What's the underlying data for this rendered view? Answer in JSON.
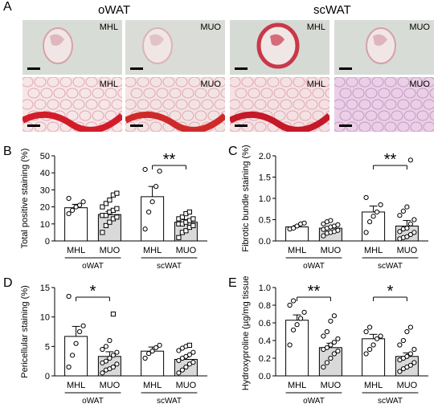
{
  "panels": {
    "A": {
      "letter": "A",
      "column_titles": [
        "oWAT",
        "scWAT"
      ],
      "tiles": [
        {
          "label": "MHL",
          "row": 0,
          "col": 0,
          "bg": "#d8dcd6",
          "tissue": "#d7a3a9"
        },
        {
          "label": "MUO",
          "row": 0,
          "col": 1,
          "bg": "#dadcd7",
          "tissue": "#dcb4b6"
        },
        {
          "label": "MHL",
          "row": 0,
          "col": 2,
          "bg": "#d6dad4",
          "tissue": "#c7394a"
        },
        {
          "label": "MUO",
          "row": 0,
          "col": 3,
          "bg": "#d8dcd6",
          "tissue": "#d5a0ad"
        },
        {
          "label": "MHL",
          "row": 1,
          "col": 0,
          "bg": "#f6e6e8",
          "tissue": "#d21c2a"
        },
        {
          "label": "MUO",
          "row": 1,
          "col": 1,
          "bg": "#f3e4e4",
          "tissue": "#cf2a2a"
        },
        {
          "label": "MHL",
          "row": 1,
          "col": 2,
          "bg": "#f4e1e3",
          "tissue": "#c51828"
        },
        {
          "label": "MUO",
          "row": 1,
          "col": 3,
          "bg": "#eacfe6",
          "tissue": "#d7a8d6"
        }
      ]
    }
  },
  "chart_data": [
    {
      "panel": "B",
      "type": "bar",
      "ylabel": "Total positive staining (%)",
      "ylim": [
        0,
        50
      ],
      "yticks": [
        0,
        10,
        20,
        30,
        40,
        50
      ],
      "categories": [
        "MHL",
        "MUO",
        "MHL",
        "MUO"
      ],
      "groups": [
        "oWAT",
        "scWAT"
      ],
      "values": [
        19.5,
        15.5,
        26,
        11
      ],
      "errors": [
        2,
        1.8,
        6,
        1.5
      ],
      "bar_fill": [
        "#ffffff",
        "#d9d9d9",
        "#ffffff",
        "#d9d9d9"
      ],
      "points": [
        [
          16,
          18,
          20,
          21,
          23,
          25
        ],
        [
          5,
          9,
          11,
          13,
          14,
          15,
          15,
          17,
          18,
          19,
          20,
          22,
          24,
          27,
          28
        ],
        [
          7,
          17,
          23,
          32,
          41,
          42
        ],
        [
          2,
          5,
          6,
          8,
          9,
          10,
          10,
          11,
          12,
          13,
          13,
          14,
          16,
          17
        ]
      ],
      "significance": [
        {
          "from": 2,
          "to": 3,
          "label": "**"
        }
      ]
    },
    {
      "panel": "C",
      "type": "bar",
      "ylabel": "Fibrotic bundle staining (%)",
      "ylim": [
        0,
        2.0
      ],
      "yticks": [
        0.0,
        0.5,
        1.0,
        1.5,
        2.0
      ],
      "categories": [
        "MHL",
        "MUO",
        "MHL",
        "MUO"
      ],
      "groups": [
        "oWAT",
        "scWAT"
      ],
      "values": [
        0.33,
        0.3,
        0.68,
        0.35
      ],
      "errors": [
        0.03,
        0.04,
        0.14,
        0.13
      ],
      "bar_fill": [
        "#ffffff",
        "#d9d9d9",
        "#ffffff",
        "#d9d9d9"
      ],
      "points": [
        [
          0.28,
          0.3,
          0.35,
          0.4,
          0.42
        ],
        [
          0.12,
          0.18,
          0.2,
          0.22,
          0.25,
          0.27,
          0.3,
          0.33,
          0.35,
          0.38,
          0.4,
          0.45,
          0.48
        ],
        [
          0.2,
          0.45,
          0.58,
          0.68,
          0.85,
          1.02
        ],
        [
          0.05,
          0.08,
          0.1,
          0.15,
          0.2,
          0.22,
          0.28,
          0.3,
          0.4,
          0.5,
          0.6,
          0.7,
          0.8,
          1.9
        ]
      ],
      "significance": [
        {
          "from": 2,
          "to": 3,
          "label": "**"
        }
      ]
    },
    {
      "panel": "D",
      "type": "bar",
      "ylabel": "Pericellular staining (%)",
      "ylim": [
        0,
        15
      ],
      "yticks": [
        0,
        5,
        10,
        15
      ],
      "categories": [
        "MHL",
        "MUO",
        "MHL",
        "MUO"
      ],
      "groups": [
        "oWAT",
        "scWAT"
      ],
      "values": [
        6.7,
        3.3,
        4.2,
        2.8
      ],
      "errors": [
        1.7,
        0.8,
        0.7,
        0.4
      ],
      "bar_fill": [
        "#ffffff",
        "#d9d9d9",
        "#ffffff",
        "#d9d9d9"
      ],
      "points": [
        [
          1.5,
          3.5,
          5.5,
          7.5,
          8.5,
          13.5
        ],
        [
          0.5,
          1,
          1.2,
          1.5,
          2,
          2.2,
          2.5,
          3,
          3.5,
          4,
          4.5,
          5,
          6,
          10.5
        ],
        [
          3,
          3.8,
          4.2,
          4.8,
          5.2
        ],
        [
          0.5,
          1,
          1.5,
          2,
          2.3,
          2.6,
          3,
          3.3,
          3.6,
          4,
          4.3,
          4.7,
          5,
          5.2
        ]
      ],
      "significance": [
        {
          "from": 0,
          "to": 1,
          "label": "*"
        }
      ]
    },
    {
      "panel": "E",
      "type": "bar",
      "ylabel": "Hydroxyproline (µg/mg tissue)",
      "ylim": [
        0,
        1.0
      ],
      "yticks": [
        0.0,
        0.2,
        0.4,
        0.6,
        0.8,
        1.0
      ],
      "categories": [
        "MHL",
        "MUO",
        "MHL",
        "MUO"
      ],
      "groups": [
        "oWAT",
        "scWAT"
      ],
      "values": [
        0.63,
        0.32,
        0.42,
        0.22
      ],
      "errors": [
        0.06,
        0.05,
        0.05,
        0.04
      ],
      "bar_fill": [
        "#ffffff",
        "#d9d9d9",
        "#ffffff",
        "#d9d9d9"
      ],
      "points": [
        [
          0.35,
          0.52,
          0.58,
          0.65,
          0.72,
          0.8,
          0.85
        ],
        [
          0.1,
          0.15,
          0.2,
          0.25,
          0.28,
          0.3,
          0.32,
          0.35,
          0.38,
          0.42,
          0.45,
          0.5,
          0.62,
          0.68
        ],
        [
          0.25,
          0.3,
          0.35,
          0.42,
          0.45,
          0.5,
          0.55
        ],
        [
          0.05,
          0.08,
          0.1,
          0.12,
          0.15,
          0.18,
          0.2,
          0.22,
          0.25,
          0.3,
          0.35,
          0.4,
          0.5,
          0.55
        ]
      ],
      "significance": [
        {
          "from": 0,
          "to": 1,
          "label": "**"
        },
        {
          "from": 2,
          "to": 3,
          "label": "*"
        }
      ]
    }
  ]
}
